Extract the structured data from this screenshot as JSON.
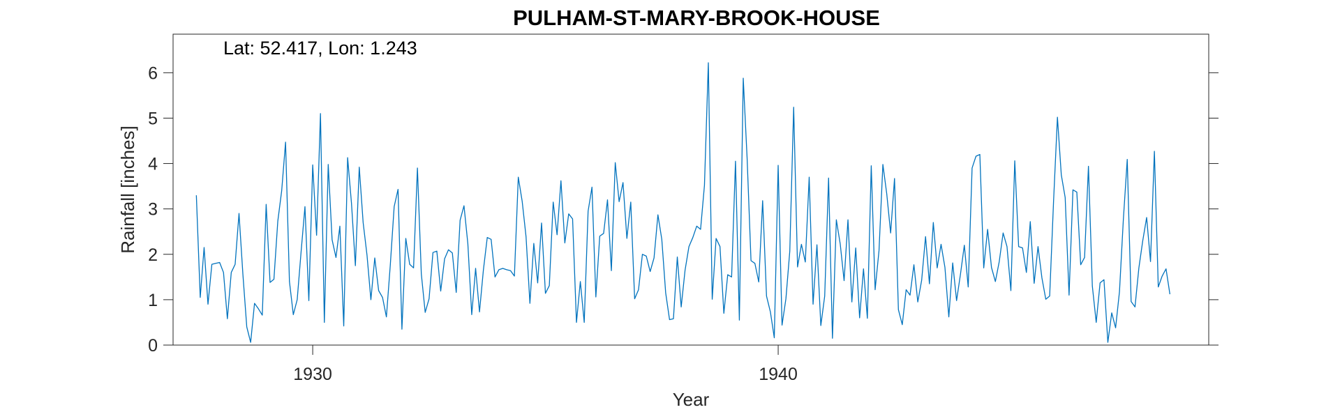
{
  "chart_data": {
    "type": "line",
    "title": "PULHAM-ST-MARY-BROOK-HOUSE",
    "annotation": "Lat: 52.417, Lon: 1.243",
    "xlabel": "Year",
    "ylabel": "Rainfall [inches]",
    "xlim": [
      1927.0,
      1949.25
    ],
    "ylim": [
      0,
      6.85
    ],
    "x_ticks": [
      1930,
      1940
    ],
    "x_tick_labels": [
      "1930",
      "1940"
    ],
    "y_ticks": [
      0,
      1,
      2,
      3,
      4,
      5,
      6
    ],
    "y_tick_labels": [
      "0",
      "1",
      "2",
      "3",
      "4",
      "5",
      "6"
    ],
    "grid": false,
    "line_color": "#0072BD",
    "x_start": 1927.5,
    "x_step": 0.08333,
    "series": [
      {
        "values": [
          3.3,
          1.05,
          2.15,
          0.9,
          1.78,
          1.8,
          1.82,
          1.6,
          0.58,
          1.6,
          1.78,
          2.9,
          1.56,
          0.4,
          0.06,
          0.92,
          0.8,
          0.66,
          3.1,
          1.38,
          1.45,
          2.73,
          3.4,
          4.47,
          1.4,
          0.67,
          1.0,
          2.05,
          3.05,
          0.98,
          3.97,
          2.42,
          5.1,
          0.5,
          3.98,
          2.32,
          1.93,
          2.62,
          0.42,
          4.13,
          3.12,
          1.75,
          3.92,
          2.7,
          1.98,
          1.0,
          1.92,
          1.2,
          1.05,
          0.62,
          1.76,
          3.05,
          3.43,
          0.35,
          2.35,
          1.78,
          1.7,
          3.9,
          1.57,
          0.72,
          1.02,
          2.04,
          2.07,
          1.19,
          1.9,
          2.1,
          2.03,
          1.16,
          2.75,
          3.07,
          2.23,
          0.67,
          1.69,
          0.73,
          1.65,
          2.37,
          2.33,
          1.5,
          1.66,
          1.69,
          1.66,
          1.64,
          1.52,
          3.7,
          3.17,
          2.39,
          0.92,
          2.24,
          1.37,
          2.69,
          1.14,
          1.31,
          3.15,
          2.43,
          3.62,
          2.25,
          2.89,
          2.78,
          0.5,
          1.4,
          0.5,
          2.95,
          3.48,
          1.06,
          2.4,
          2.46,
          3.2,
          1.64,
          4.02,
          3.16,
          3.58,
          2.35,
          3.15,
          1.02,
          1.22,
          2.0,
          1.96,
          1.62,
          1.92,
          2.87,
          2.33,
          1.15,
          0.56,
          0.58,
          1.94,
          0.84,
          1.65,
          2.17,
          2.37,
          2.62,
          2.55,
          3.52,
          6.22,
          1.01,
          2.35,
          2.17,
          0.7,
          1.55,
          1.5,
          4.05,
          0.55,
          5.88,
          4.11,
          1.86,
          1.8,
          1.39,
          3.18,
          1.08,
          0.73,
          0.16,
          3.96,
          0.44,
          1.02,
          2.07,
          5.24,
          1.72,
          2.22,
          1.83,
          3.7,
          0.9,
          2.21,
          0.43,
          1.08,
          3.68,
          0.15,
          2.76,
          2.23,
          1.42,
          2.76,
          0.95,
          2.14,
          0.6,
          1.68,
          0.59,
          3.95,
          1.22,
          2.08,
          3.98,
          3.33,
          2.47,
          3.67,
          0.78,
          0.45,
          1.22,
          1.1,
          1.77,
          0.95,
          1.43,
          2.39,
          1.35,
          2.7,
          1.7,
          2.22,
          1.71,
          0.62,
          1.81,
          0.98,
          1.56,
          2.2,
          1.28,
          3.9,
          4.16,
          4.2,
          1.7,
          2.55,
          1.71,
          1.4,
          1.84,
          2.47,
          2.17,
          1.2,
          4.06,
          2.17,
          2.14,
          1.6,
          2.72,
          1.36,
          2.17,
          1.48,
          1.01,
          1.08,
          3.16,
          5.02,
          3.75,
          3.25,
          1.1,
          3.42,
          3.37,
          1.77,
          1.93,
          3.94,
          1.3,
          0.5,
          1.37,
          1.44,
          0.06,
          0.71,
          0.38,
          1.18,
          2.77,
          4.09,
          0.96,
          0.84,
          1.7,
          2.3,
          2.81,
          1.84,
          4.27,
          1.28,
          1.52,
          1.68,
          1.12
        ]
      }
    ]
  }
}
